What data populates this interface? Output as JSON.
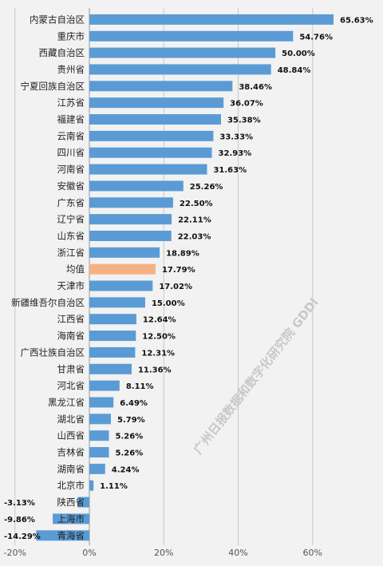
{
  "chart_data": {
    "type": "bar",
    "orientation": "horizontal",
    "categories": [
      "内蒙古自治区",
      "重庆市",
      "西藏自治区",
      "贵州省",
      "宁夏回族自治区",
      "江苏省",
      "福建省",
      "云南省",
      "四川省",
      "河南省",
      "安徽省",
      "广东省",
      "辽宁省",
      "山东省",
      "浙江省",
      "均值",
      "天津市",
      "新疆维吾尔自治区",
      "江西省",
      "海南省",
      "广西壮族自治区",
      "甘肃省",
      "河北省",
      "黑龙江省",
      "湖北省",
      "山西省",
      "吉林省",
      "湖南省",
      "北京市",
      "陕西省",
      "上海市",
      "青海省"
    ],
    "values": [
      65.63,
      54.76,
      50.0,
      48.84,
      38.46,
      36.07,
      35.38,
      33.33,
      32.93,
      31.63,
      25.26,
      22.5,
      22.11,
      22.03,
      18.89,
      17.79,
      17.02,
      15.0,
      12.64,
      12.5,
      12.31,
      11.36,
      8.11,
      6.49,
      5.79,
      5.26,
      5.26,
      4.24,
      1.11,
      -3.13,
      -9.86,
      -14.29
    ],
    "value_labels": [
      "65.63%",
      "54.76%",
      "50.00%",
      "48.84%",
      "38.46%",
      "36.07%",
      "35.38%",
      "33.33%",
      "32.93%",
      "31.63%",
      "25.26%",
      "22.50%",
      "22.11%",
      "22.03%",
      "18.89%",
      "17.79%",
      "17.02%",
      "15.00%",
      "12.64%",
      "12.50%",
      "12.31%",
      "11.36%",
      "8.11%",
      "6.49%",
      "5.79%",
      "5.26%",
      "5.26%",
      "4.24%",
      "1.11%",
      "-3.13%",
      "-9.86%",
      "-14.29%"
    ],
    "highlight_category": "均值",
    "xlim": [
      -20,
      70
    ],
    "xticks": [
      -20,
      0,
      20,
      40,
      60
    ],
    "xtick_labels": [
      "-20%",
      "0%",
      "20%",
      "40%",
      "60%"
    ],
    "grid": true,
    "colors": {
      "bar": "#5b9bd5",
      "highlight": "#f4b183",
      "grid": "#c8c8c8",
      "background": "#f2f2f2"
    },
    "watermark": "广州日报数据和数字化研究院 GDDI"
  }
}
